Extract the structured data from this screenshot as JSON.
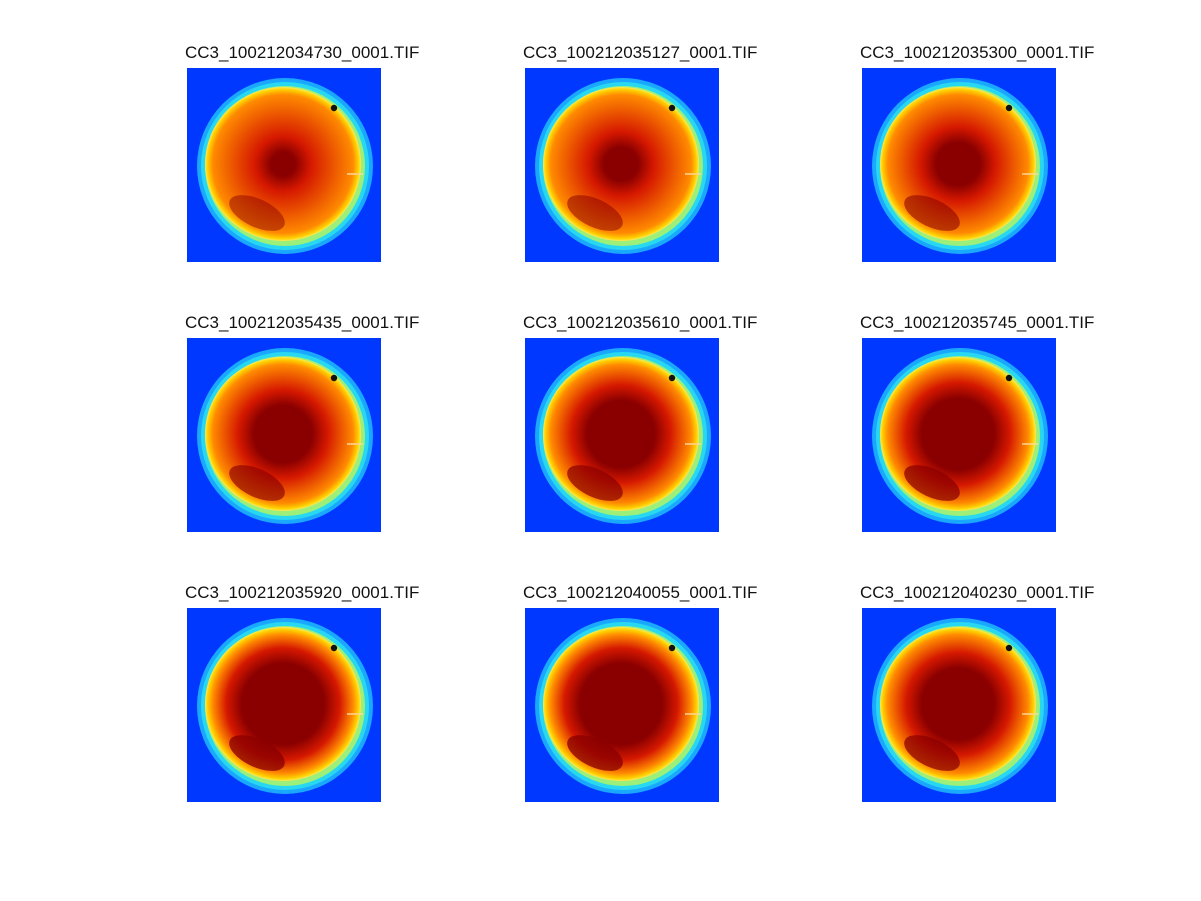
{
  "colors": {
    "background": "#0038ff",
    "ring_cyan": "#28d8f0",
    "ring_yellow": "#ffd200",
    "disk_orange": "#ff8a00",
    "core_dark_red": "#8a0000",
    "hot_spot": "#111111"
  },
  "panels": [
    {
      "title": "CC3_100212034730_0001.TIF",
      "core_level": 0.25
    },
    {
      "title": "CC3_100212035127_0001.TIF",
      "core_level": 0.35
    },
    {
      "title": "CC3_100212035300_0001.TIF",
      "core_level": 0.45
    },
    {
      "title": "CC3_100212035435_0001.TIF",
      "core_level": 0.6
    },
    {
      "title": "CC3_100212035610_0001.TIF",
      "core_level": 0.7
    },
    {
      "title": "CC3_100212035745_0001.TIF",
      "core_level": 0.75
    },
    {
      "title": "CC3_100212035920_0001.TIF",
      "core_level": 0.85
    },
    {
      "title": "CC3_100212040055_0001.TIF",
      "core_level": 0.85
    },
    {
      "title": "CC3_100212040230_0001.TIF",
      "core_level": 0.75
    }
  ]
}
